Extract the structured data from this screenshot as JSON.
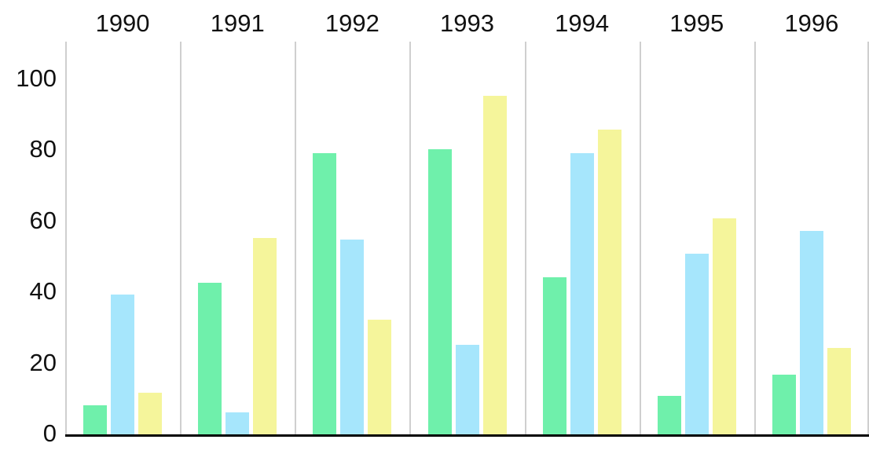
{
  "chart_data": {
    "type": "bar",
    "title": "",
    "xlabel": "",
    "ylabel": "",
    "categories": [
      "1990",
      "1991",
      "1992",
      "1993",
      "1994",
      "1995",
      "1996"
    ],
    "series": [
      {
        "name": "green",
        "color": "#6ff0ab",
        "values": [
          8.5,
          43,
          79.5,
          80.5,
          44.5,
          11,
          17
        ]
      },
      {
        "name": "blue",
        "color": "#a6e6fc",
        "values": [
          39.5,
          6.5,
          55,
          25.5,
          79.5,
          51,
          57.5
        ]
      },
      {
        "name": "yellow",
        "color": "#f5f59b",
        "values": [
          12,
          55.5,
          32.5,
          95.5,
          86,
          61,
          24.5
        ]
      }
    ],
    "yticks": [
      0,
      20,
      40,
      60,
      80,
      100
    ],
    "ylim": [
      0,
      110
    ],
    "layout": {
      "x_labels_position": "top",
      "grid": "vertical-separators-only",
      "legend": false,
      "background_color": "#ffffff",
      "gridline_color": "#cfcfcf",
      "axis_line_color": "#000000",
      "text_color": "#111111"
    }
  }
}
